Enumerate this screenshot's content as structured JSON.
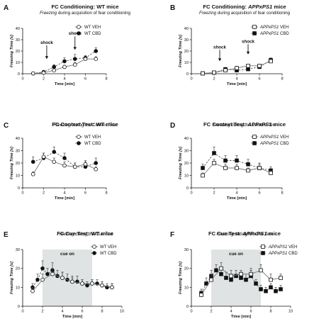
{
  "chart_data": [
    {
      "type": "line",
      "panel_letter": "A",
      "title_parts": [
        {
          "t": "FC Conditioning: ",
          "i": false
        },
        {
          "t": "WT mice",
          "i": false
        }
      ],
      "subtitle_parts": [
        {
          "t": "Freezing",
          "i": true
        },
        {
          "t": " during acquisition of fear conditioning",
          "i": false
        }
      ],
      "xlabel": "Time [min]",
      "ylabel": "Freezing Time [s]",
      "xlim": [
        0,
        8
      ],
      "ylim": [
        0,
        40
      ],
      "xticks": [
        0,
        2,
        4,
        6,
        8
      ],
      "yticks": [
        0,
        10,
        20,
        30,
        40
      ],
      "legend_position": "top-right",
      "annotations": [
        {
          "text": "shock",
          "x": 2.3,
          "y_top": 25,
          "y_tip": 13
        },
        {
          "text": "shock",
          "x": 5.0,
          "y_top": 33,
          "y_tip": 21
        }
      ],
      "series": [
        {
          "name_parts": [
            {
              "t": "WT VEH",
              "i": false
            }
          ],
          "marker": "circle-open",
          "line": "solid",
          "x": [
            1,
            2,
            3,
            4,
            5,
            6,
            7
          ],
          "y": [
            0.3,
            0.8,
            3,
            6,
            8,
            13,
            13
          ],
          "err": [
            0.3,
            0.5,
            1,
            1.5,
            2,
            2,
            2
          ]
        },
        {
          "name_parts": [
            {
              "t": "WT CBD",
              "i": false
            }
          ],
          "marker": "circle-filled",
          "line": "dashed",
          "x": [
            1,
            2,
            3,
            4,
            5,
            6,
            7
          ],
          "y": [
            0.3,
            1.5,
            6,
            11,
            13,
            14,
            20
          ],
          "err": [
            0.3,
            0.5,
            2,
            3,
            4,
            2,
            3
          ]
        }
      ]
    },
    {
      "type": "line",
      "panel_letter": "B",
      "title_parts": [
        {
          "t": "FC Conditioning: ",
          "i": false
        },
        {
          "t": "APPxPS1",
          "i": true
        },
        {
          "t": " mice",
          "i": false
        }
      ],
      "subtitle_parts": [
        {
          "t": "Freezing",
          "i": true
        },
        {
          "t": " during acquisition of fear conditioning",
          "i": false
        }
      ],
      "xlabel": "Time [min]",
      "ylabel": "Freezing Time [s]",
      "xlim": [
        0,
        8
      ],
      "ylim": [
        0,
        40
      ],
      "xticks": [
        0,
        2,
        4,
        6,
        8
      ],
      "yticks": [
        0,
        10,
        20,
        30,
        40
      ],
      "legend_position": "top-right",
      "annotations": [
        {
          "text": "shock",
          "x": 2.5,
          "y_top": 21,
          "y_tip": 11
        },
        {
          "text": "shock",
          "x": 5.0,
          "y_top": 26,
          "y_tip": 17
        }
      ],
      "series": [
        {
          "name_parts": [
            {
              "t": "APPxPS1",
              "i": true
            },
            {
              "t": " VEH",
              "i": false
            }
          ],
          "marker": "square-open",
          "line": "solid",
          "x": [
            1,
            2,
            3,
            4,
            5,
            6,
            7
          ],
          "y": [
            0.3,
            1,
            3,
            5,
            7,
            7,
            11
          ],
          "err": [
            0.3,
            0.5,
            1,
            1.5,
            1.5,
            1.5,
            2
          ]
        },
        {
          "name_parts": [
            {
              "t": "APPxPS1",
              "i": true
            },
            {
              "t": " CBD",
              "i": false
            }
          ],
          "marker": "square-filled",
          "line": "dashed",
          "x": [
            1,
            2,
            3,
            4,
            5,
            6,
            7
          ],
          "y": [
            0.3,
            1,
            4,
            3,
            4,
            6,
            12
          ],
          "err": [
            0.3,
            0.5,
            1,
            1,
            1,
            1.5,
            2
          ]
        }
      ]
    },
    {
      "type": "line",
      "panel_letter": "C",
      "title_parts": [
        {
          "t": "FC Context Test: WT mice",
          "i": false
        }
      ],
      "subtitle_parts": [
        {
          "t": "Freezing",
          "i": true
        },
        {
          "t": " during the Context Test",
          "i": false
        }
      ],
      "xlabel": "Time [min]",
      "ylabel": "Freezing Time [s]",
      "xlim": [
        0,
        8
      ],
      "ylim": [
        0,
        40
      ],
      "xticks": [
        0,
        2,
        4,
        6,
        8
      ],
      "yticks": [
        0,
        10,
        20,
        30,
        40
      ],
      "legend_position": "top-right",
      "annotations": [],
      "series": [
        {
          "name_parts": [
            {
              "t": "WT VEH",
              "i": false
            }
          ],
          "marker": "circle-open",
          "line": "solid",
          "x": [
            1,
            2,
            3,
            4,
            5,
            6,
            7
          ],
          "y": [
            11,
            25,
            21,
            18,
            17,
            19,
            15
          ],
          "err": [
            2,
            3,
            3,
            3,
            3,
            3,
            2
          ]
        },
        {
          "name_parts": [
            {
              "t": "WT CBD",
              "i": false
            }
          ],
          "marker": "circle-filled",
          "line": "dashed",
          "x": [
            1,
            2,
            3,
            4,
            5,
            6,
            7
          ],
          "y": [
            21,
            24,
            29,
            24,
            17,
            17,
            20
          ],
          "err": [
            4,
            4,
            4,
            4,
            3,
            4,
            4
          ]
        }
      ]
    },
    {
      "type": "line",
      "panel_letter": "D",
      "title_parts": [
        {
          "t": "FC Context Test: ",
          "i": false
        },
        {
          "t": "APPxPS1",
          "i": true
        },
        {
          "t": " mice",
          "i": false
        }
      ],
      "subtitle_parts": [
        {
          "t": "Freezing",
          "i": true
        },
        {
          "t": " during the Context Test",
          "i": false
        }
      ],
      "xlabel": "Time [min]",
      "ylabel": "Freezing Time [s]",
      "xlim": [
        0,
        8
      ],
      "ylim": [
        0,
        40
      ],
      "xticks": [
        0,
        2,
        4,
        6,
        8
      ],
      "yticks": [
        0,
        10,
        20,
        30,
        40
      ],
      "legend_position": "top-right",
      "annotations": [],
      "series": [
        {
          "name_parts": [
            {
              "t": "APPxPS1",
              "i": true
            },
            {
              "t": " VEH",
              "i": false
            }
          ],
          "marker": "square-open",
          "line": "solid",
          "x": [
            1,
            2,
            3,
            4,
            5,
            6,
            7
          ],
          "y": [
            10,
            20,
            16,
            16,
            14,
            16,
            12
          ],
          "err": [
            2,
            3,
            3,
            3,
            2,
            3,
            2
          ]
        },
        {
          "name_parts": [
            {
              "t": "APPxPS1",
              "i": true
            },
            {
              "t": " CBD",
              "i": false
            }
          ],
          "marker": "square-filled",
          "line": "dashed",
          "x": [
            1,
            2,
            3,
            4,
            5,
            6,
            7
          ],
          "y": [
            16,
            28,
            22,
            22,
            19,
            16,
            14
          ],
          "err": [
            3,
            5,
            4,
            4,
            4,
            4,
            3
          ]
        }
      ]
    },
    {
      "type": "line",
      "panel_letter": "E",
      "title_parts": [
        {
          "t": "FC Cue Test: WT mice",
          "i": false
        }
      ],
      "subtitle_parts": [
        {
          "t": "Freezing",
          "i": true
        },
        {
          "t": " during the Cue Test",
          "i": false
        }
      ],
      "xlabel": "Time [min]",
      "ylabel": "Freezing Time [s]",
      "xlim": [
        0,
        10
      ],
      "ylim": [
        0,
        30
      ],
      "xticks": [
        0,
        2,
        4,
        6,
        8,
        10
      ],
      "yticks": [
        0,
        10,
        20,
        30
      ],
      "legend_position": "top-right",
      "shaded": {
        "x_from": 2,
        "x_to": 7,
        "label": "cue on"
      },
      "annotations": [],
      "series": [
        {
          "name_parts": [
            {
              "t": "WT VEH",
              "i": false
            }
          ],
          "marker": "circle-open",
          "line": "solid",
          "x": [
            1,
            2,
            3,
            4,
            5,
            6,
            7,
            8,
            9
          ],
          "y": [
            8,
            14,
            17,
            15,
            13,
            12,
            12,
            11,
            10
          ],
          "err": [
            2,
            3,
            3,
            3,
            2,
            2,
            2,
            2,
            2
          ]
        },
        {
          "name_parts": [
            {
              "t": "WT CBD",
              "i": false
            }
          ],
          "marker": "circle-filled",
          "line": "dashed",
          "x": [
            1,
            1.5,
            2,
            2.5,
            3,
            3.5,
            4,
            4.5,
            5,
            5.5,
            6,
            6.5,
            7,
            7.5,
            8,
            8.5,
            9
          ],
          "y": [
            10,
            14,
            20,
            17,
            19,
            16,
            15,
            14,
            13,
            13,
            12,
            11,
            12,
            12,
            11,
            10,
            10
          ],
          "err": [
            2,
            3,
            4,
            3,
            4,
            3,
            3,
            3,
            3,
            3,
            2,
            2,
            2,
            2,
            2,
            2,
            2
          ]
        }
      ]
    },
    {
      "type": "line",
      "panel_letter": "F",
      "title_parts": [
        {
          "t": "FC Cue Test: ",
          "i": false
        },
        {
          "t": "APPxPS1",
          "i": true
        },
        {
          "t": " mice",
          "i": false
        }
      ],
      "subtitle_parts": [
        {
          "t": "Freezing",
          "i": true
        },
        {
          "t": " during the Cue Test",
          "i": false
        }
      ],
      "xlabel": "Time [min]",
      "ylabel": "Freezing Time [s]",
      "xlim": [
        0,
        10
      ],
      "ylim": [
        0,
        30
      ],
      "xticks": [
        0,
        2,
        4,
        6,
        8,
        10
      ],
      "yticks": [
        0,
        10,
        20,
        30
      ],
      "legend_position": "top-right",
      "shaded": {
        "x_from": 2,
        "x_to": 7,
        "label": "cue on"
      },
      "annotations": [],
      "series": [
        {
          "name_parts": [
            {
              "t": "APPxPS1",
              "i": true
            },
            {
              "t": " VEH",
              "i": false
            }
          ],
          "marker": "square-open",
          "line": "solid",
          "x": [
            1,
            2,
            3,
            4,
            5,
            6,
            7,
            8,
            9
          ],
          "y": [
            6,
            14,
            20,
            16,
            17,
            17,
            19,
            14,
            15
          ],
          "err": [
            2,
            3,
            3,
            3,
            2,
            3,
            3,
            3,
            2
          ]
        },
        {
          "name_parts": [
            {
              "t": "APPxPS1",
              "i": true
            },
            {
              "t": " CBD",
              "i": false
            }
          ],
          "marker": "square-filled",
          "line": "dashed",
          "x": [
            1,
            1.5,
            2,
            2.5,
            3,
            3.5,
            4,
            4.5,
            5,
            5.5,
            6,
            6.5,
            7,
            7.5,
            8,
            8.5,
            9
          ],
          "y": [
            7,
            12,
            16,
            19,
            17,
            15,
            14,
            16,
            15,
            14,
            16,
            12,
            9,
            8,
            10,
            8,
            9
          ],
          "err": [
            2,
            3,
            3,
            3,
            3,
            3,
            3,
            3,
            3,
            3,
            3,
            2,
            2,
            2,
            2,
            2,
            2
          ]
        }
      ]
    }
  ]
}
